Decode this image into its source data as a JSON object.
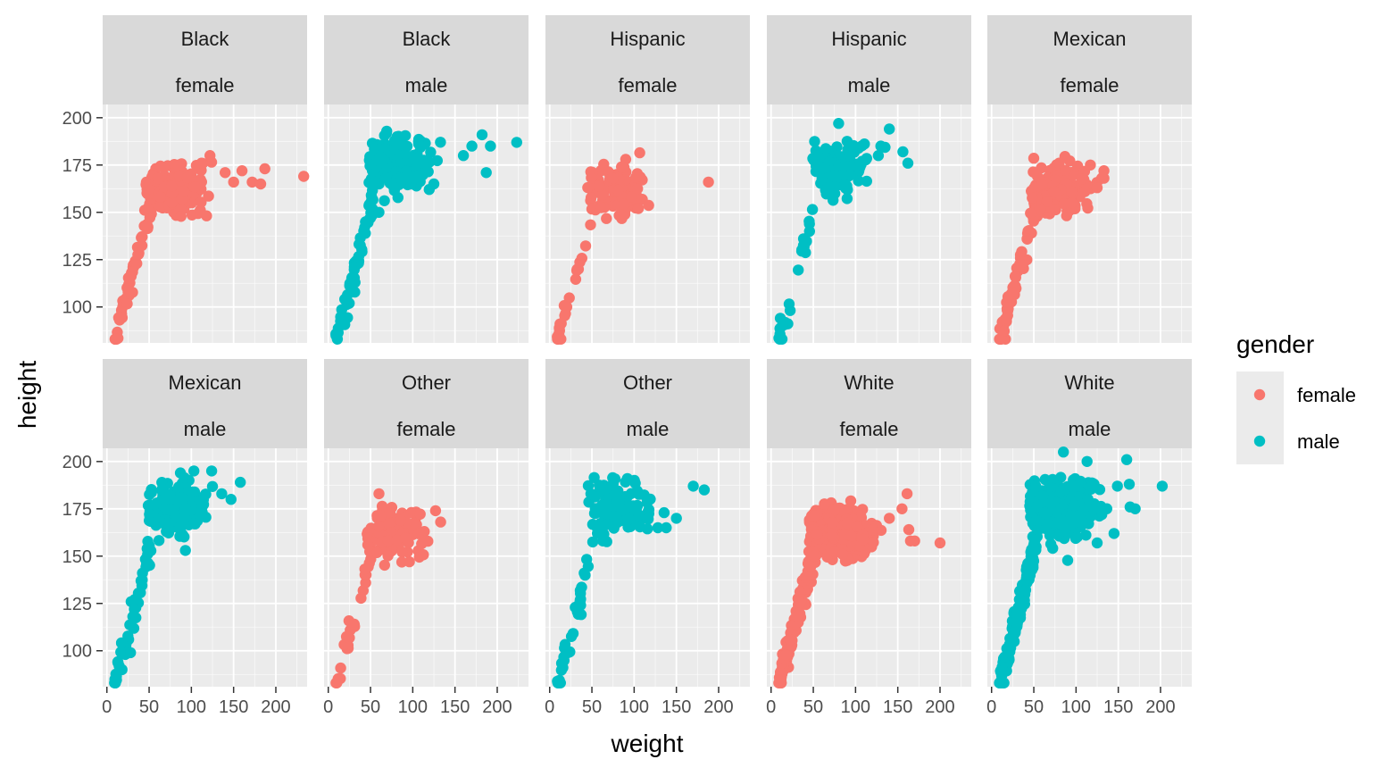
{
  "chart_data": {
    "type": "scatter",
    "facet_type": "facet_wrap",
    "facet_rows": 2,
    "facet_cols": 5,
    "xlabel": "weight",
    "ylabel": "height",
    "xlim": [
      -5,
      237
    ],
    "ylim": [
      81,
      207
    ],
    "x_ticks": [
      0,
      50,
      100,
      150,
      200
    ],
    "y_ticks": [
      100,
      125,
      150,
      175,
      200
    ],
    "grid": true,
    "legend": {
      "title": "gender",
      "placement": "right",
      "entries": [
        {
          "label": "female",
          "color": "#F8766D"
        },
        {
          "label": "male",
          "color": "#00BFC4"
        }
      ]
    },
    "colors": {
      "female": "#F8766D",
      "male": "#00BFC4",
      "panel_bg": "#EBEBEB",
      "strip_bg": "#D9D9D9",
      "grid": "#FFFFFF"
    },
    "panels": [
      {
        "race": "Black",
        "gender": "female",
        "n": 260,
        "outliers": [
          [
            233,
            169
          ],
          [
            187,
            173
          ],
          [
            182,
            165
          ],
          [
            172,
            166
          ],
          [
            160,
            172
          ],
          [
            150,
            166
          ],
          [
            140,
            171
          ],
          [
            122,
            180
          ],
          [
            112,
            176
          ]
        ]
      },
      {
        "race": "Black",
        "gender": "male",
        "n": 260,
        "outliers": [
          [
            223,
            187
          ],
          [
            192,
            185
          ],
          [
            187,
            171
          ],
          [
            182,
            191
          ],
          [
            170,
            185
          ],
          [
            160,
            180
          ],
          [
            125,
            165
          ],
          [
            60,
            150
          ],
          [
            50,
            147
          ]
        ]
      },
      {
        "race": "Hispanic",
        "gender": "female",
        "n": 140,
        "outliers": [
          [
            188,
            166
          ],
          [
            105,
            152
          ],
          [
            97,
            158
          ],
          [
            90,
            178
          ],
          [
            85,
            174
          ]
        ]
      },
      {
        "race": "Hispanic",
        "gender": "male",
        "n": 140,
        "outliers": [
          [
            80,
            197
          ],
          [
            140,
            194
          ],
          [
            162,
            176
          ],
          [
            156,
            182
          ],
          [
            130,
            185
          ],
          [
            127,
            180
          ]
        ]
      },
      {
        "race": "Mexican",
        "gender": "female",
        "n": 230,
        "outliers": [
          [
            133,
            168
          ],
          [
            133,
            172
          ],
          [
            125,
            163
          ],
          [
            117,
            175
          ],
          [
            95,
            155
          ],
          [
            80,
            176
          ]
        ]
      },
      {
        "race": "Mexican",
        "gender": "male",
        "n": 230,
        "outliers": [
          [
            103,
            195
          ],
          [
            124,
            195
          ],
          [
            158,
            189
          ],
          [
            147,
            180
          ],
          [
            136,
            183
          ],
          [
            93,
            153
          ],
          [
            28,
            99
          ]
        ]
      },
      {
        "race": "Other",
        "gender": "female",
        "n": 150,
        "outliers": [
          [
            60,
            183
          ],
          [
            133,
            168
          ],
          [
            127,
            174
          ],
          [
            96,
            147
          ]
        ]
      },
      {
        "race": "Other",
        "gender": "male",
        "n": 150,
        "outliers": [
          [
            183,
            185
          ],
          [
            170,
            187
          ],
          [
            150,
            170
          ],
          [
            138,
            165
          ],
          [
            128,
            165
          ],
          [
            92,
            191
          ]
        ]
      },
      {
        "race": "White",
        "gender": "female",
        "n": 700,
        "outliers": [
          [
            200,
            157
          ],
          [
            170,
            158
          ],
          [
            165,
            158
          ],
          [
            163,
            164
          ],
          [
            161,
            183
          ],
          [
            155,
            175
          ],
          [
            140,
            170
          ]
        ]
      },
      {
        "race": "White",
        "gender": "male",
        "n": 700,
        "outliers": [
          [
            202,
            187
          ],
          [
            170,
            175
          ],
          [
            164,
            176
          ],
          [
            163,
            188
          ],
          [
            160,
            201
          ],
          [
            149,
            187
          ],
          [
            145,
            162
          ],
          [
            125,
            157
          ],
          [
            113,
            200
          ],
          [
            85,
            205
          ]
        ]
      }
    ]
  }
}
